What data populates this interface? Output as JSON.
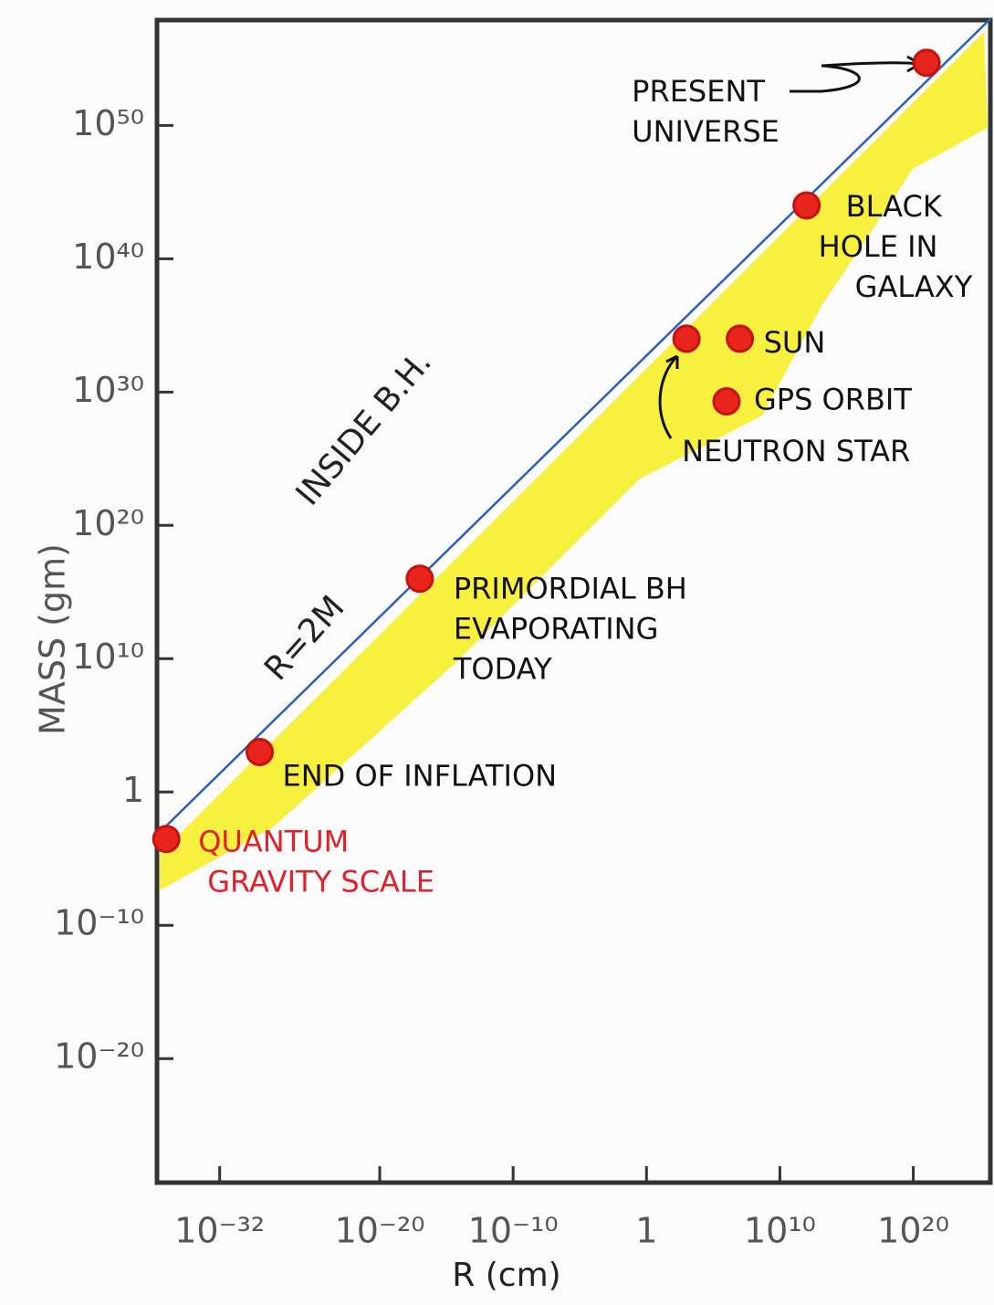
{
  "chart_data": {
    "type": "scatter",
    "x_label": "R (cm)",
    "y_label": "MASS (gm)",
    "log_x": true,
    "log_y": true,
    "xlim": [
      2e-37,
      6e+25
    ],
    "ylim": [
      5e-30,
      8e+57
    ],
    "xticks": [
      {
        "value": 1e-32,
        "label": "10⁻³²"
      },
      {
        "value": 1e-20,
        "label": "10⁻²⁰"
      },
      {
        "value": 1e-10,
        "label": "10⁻¹⁰"
      },
      1,
      {
        "value": 10000000000.0,
        "label": "10¹⁰"
      },
      {
        "value": 1e+20,
        "label": "10²⁰"
      }
    ],
    "yticks": [
      {
        "value": 1e+50,
        "label": "10⁵⁰"
      },
      {
        "value": 1e+40,
        "label": "10⁴⁰"
      },
      {
        "value": 1e+30,
        "label": "10³⁰"
      },
      {
        "value": 1e+20,
        "label": "10²⁰"
      },
      {
        "value": 10000000000.0,
        "label": "10¹⁰"
      },
      1,
      {
        "value": 1e-10,
        "label": "10⁻¹⁰"
      },
      {
        "value": 1e-20,
        "label": "10⁻²⁰"
      }
    ],
    "color": "#e8241c",
    "x": [
      1e-36,
      1e-29,
      1e-17,
      1000.0,
      10000000.0,
      1000000.0,
      1000000000000.0,
      1e+21
    ],
    "y": [
      0.0003,
      1000.0,
      1e+16,
      1e+34,
      1e+34,
      2e+29,
      1e+44,
      5e+54
    ],
    "labels": [
      [
        "QUANTUM",
        "GRAVITY SCALE"
      ],
      [
        "END OF INFLATION"
      ],
      [
        "PRIMORDIAL BH",
        "EVAPORATING",
        "TODAY"
      ],
      [
        "NEUTRON STAR"
      ],
      [
        "SUN"
      ],
      [
        "GPS ORBIT"
      ],
      [
        "BLACK",
        "HOLE IN",
        "GALAXY"
      ],
      [
        "PRESENT",
        "UNIVERSE"
      ]
    ],
    "label_colors": [
      "#e0202a",
      "#111111",
      "#111111",
      "#111111",
      "#111111",
      "#111111",
      "#111111",
      "#111111"
    ],
    "boundary": {
      "label": "R=2M",
      "color": "#2b5fb8",
      "x": [
        2e-37,
        6e+25
      ],
      "y": [
        0.0006,
        1e+58
      ]
    },
    "region_label": "INSIDE B.H."
  }
}
